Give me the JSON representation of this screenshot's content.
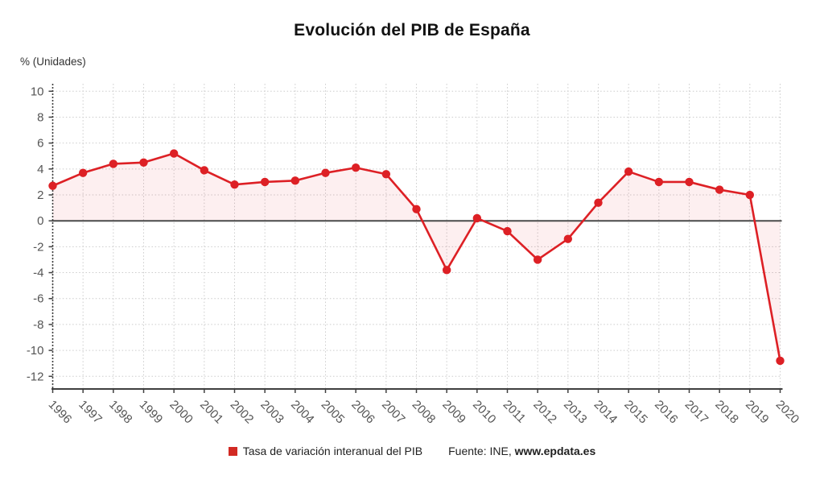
{
  "header": {
    "title": "Evolución del PIB de España"
  },
  "axes": {
    "y_label": "% (Unidades)"
  },
  "legend": {
    "series_label": "Tasa de variación interanual del PIB",
    "source_prefix": "Fuente: INE, ",
    "source_site": "www.epdata.es",
    "swatch_color": "#d22a23"
  },
  "chart_data": {
    "type": "line",
    "title": "Evolución del PIB de España",
    "ylabel": "% (Unidades)",
    "categories": [
      "1996",
      "1997",
      "1998",
      "1999",
      "2000",
      "2001",
      "2002",
      "2003",
      "2004",
      "2005",
      "2006",
      "2007",
      "2008",
      "2009",
      "2010",
      "2011",
      "2012",
      "2013",
      "2014",
      "2015",
      "2016",
      "2017",
      "2018",
      "2019",
      "2020"
    ],
    "series": [
      {
        "name": "Tasa de variación interanual del PIB",
        "values": [
          2.7,
          3.7,
          4.4,
          4.5,
          5.2,
          3.9,
          2.8,
          3.0,
          3.1,
          3.7,
          4.1,
          3.6,
          0.9,
          -3.8,
          0.2,
          -0.8,
          -3.0,
          -1.4,
          1.4,
          3.8,
          3.0,
          3.0,
          2.4,
          2.0,
          -10.8
        ]
      }
    ],
    "ylim": [
      -13,
      10.6
    ],
    "yticks": [
      10,
      8,
      6,
      4,
      2,
      0,
      -2,
      -4,
      -6,
      -8,
      -10,
      -12
    ],
    "grid": true,
    "legend_position": "bottom",
    "fill_to_zero": true,
    "line_color": "#dd2025",
    "marker_color": "#dd2025",
    "fill_color": "rgba(221,32,37,0.07)",
    "grid_color": "#cccccc",
    "axis_color": "#3f3f3f",
    "zero_line_color": "#4a4a4a",
    "tick_label_color": "#555555"
  }
}
